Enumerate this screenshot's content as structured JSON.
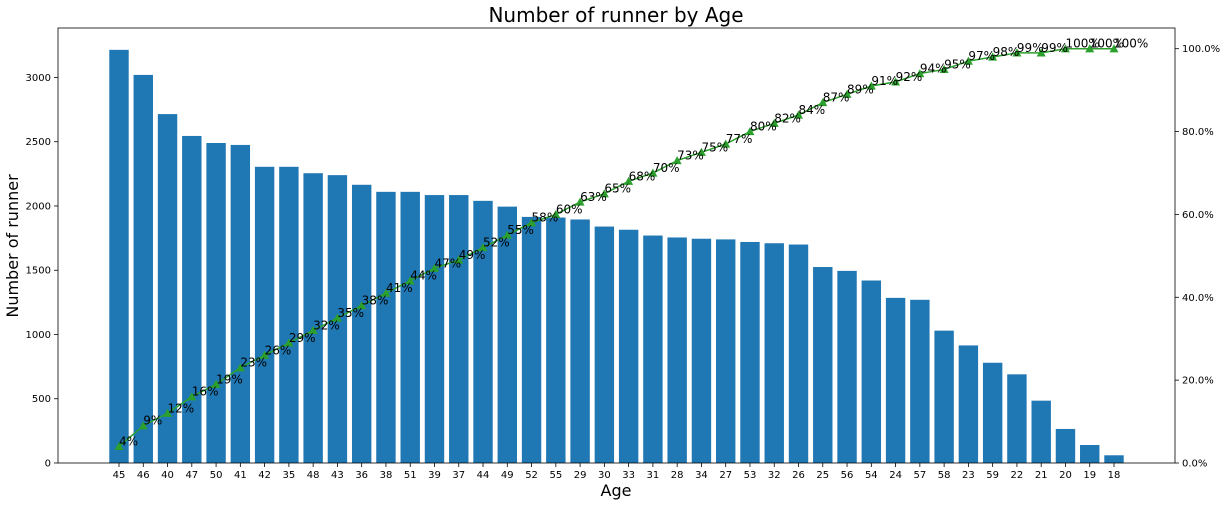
{
  "chart_data": {
    "type": "bar",
    "title": "Number of runner by Age",
    "xlabel": "Age",
    "ylabel": "Number of runner",
    "categories": [
      "45",
      "46",
      "40",
      "47",
      "50",
      "41",
      "42",
      "35",
      "48",
      "43",
      "36",
      "38",
      "51",
      "39",
      "37",
      "44",
      "49",
      "52",
      "55",
      "29",
      "30",
      "33",
      "31",
      "28",
      "34",
      "27",
      "53",
      "32",
      "26",
      "25",
      "56",
      "54",
      "24",
      "57",
      "58",
      "23",
      "59",
      "22",
      "21",
      "20",
      "19",
      "18"
    ],
    "values": [
      3215,
      3020,
      2715,
      2545,
      2490,
      2475,
      2305,
      2305,
      2255,
      2240,
      2165,
      2110,
      2110,
      2085,
      2085,
      2040,
      1995,
      1915,
      1910,
      1895,
      1840,
      1815,
      1770,
      1755,
      1745,
      1740,
      1720,
      1710,
      1700,
      1525,
      1495,
      1420,
      1285,
      1270,
      1030,
      915,
      780,
      690,
      485,
      265,
      140,
      60
    ],
    "ylim": [
      0,
      3385
    ],
    "yticks": [
      "0",
      "500",
      "1000",
      "1500",
      "2000",
      "2500",
      "3000"
    ],
    "bar_color": "#1f77b4",
    "cumulative_series": {
      "values": [
        4,
        9,
        12,
        16,
        19,
        23,
        26,
        29,
        32,
        35,
        38,
        41,
        44,
        47,
        49,
        52,
        55,
        58,
        60,
        63,
        65,
        68,
        70,
        73,
        75,
        77,
        80,
        82,
        84,
        87,
        89,
        91,
        92,
        94,
        95,
        97,
        98,
        99,
        99,
        100,
        100,
        100
      ],
      "labels": [
        "4%",
        "9%",
        "12%",
        "16%",
        "19%",
        "23%",
        "26%",
        "29%",
        "32%",
        "35%",
        "38%",
        "41%",
        "44%",
        "47%",
        "49%",
        "52%",
        "55%",
        "58%",
        "60%",
        "63%",
        "65%",
        "68%",
        "70%",
        "73%",
        "75%",
        "77%",
        "80%",
        "82%",
        "84%",
        "87%",
        "89%",
        "91%",
        "92%",
        "94%",
        "95%",
        "97%",
        "98%",
        "99%",
        "99%",
        "100%",
        "100%",
        "100%"
      ],
      "color": "#2ca02c",
      "marker": "triangle"
    },
    "y2lim": [
      0,
      105
    ],
    "y2ticks": [
      "0.0%",
      "20.0%",
      "40.0%",
      "60.0%",
      "80.0%",
      "100.0%"
    ],
    "grid": false,
    "legend": "none"
  }
}
